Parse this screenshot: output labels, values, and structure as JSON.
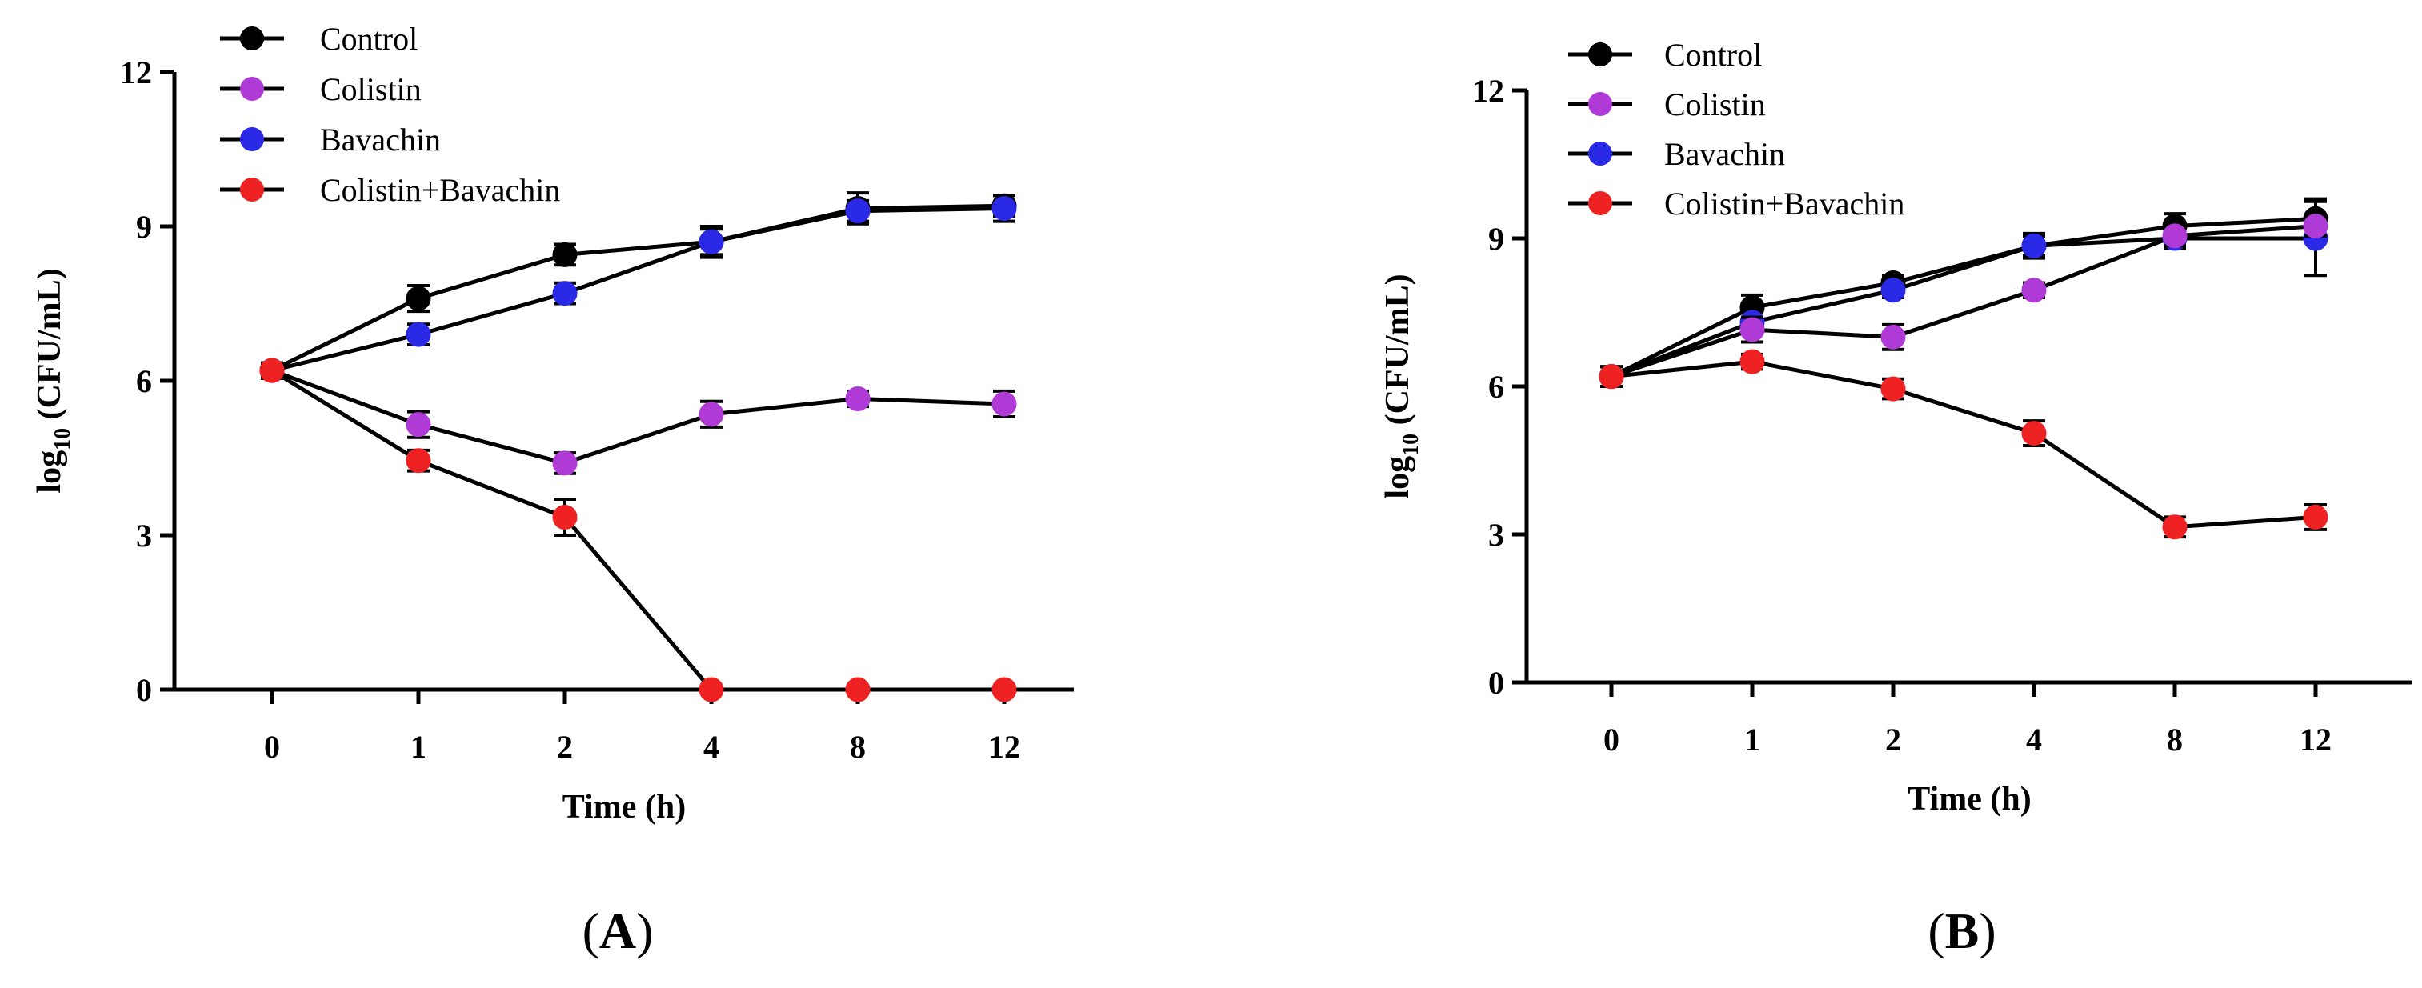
{
  "chart_data": [
    {
      "panel": "A",
      "type": "line",
      "xlabel": "Time (h)",
      "ylabel_main": "log",
      "ylabel_sub": "10",
      "ylabel_rest": " (CFU/mL)",
      "categories": [
        "0",
        "1",
        "2",
        "4",
        "8",
        "12"
      ],
      "ylim": [
        0,
        12
      ],
      "yticks": [
        "0",
        "3",
        "6",
        "9",
        "12"
      ],
      "legend_position": "top-left",
      "series": [
        {
          "name": "Control",
          "color": "#000000",
          "values": [
            6.2,
            7.6,
            8.45,
            8.7,
            9.35,
            9.4
          ],
          "errors": [
            0.15,
            0.25,
            0.2,
            0.3,
            0.3,
            0.2
          ]
        },
        {
          "name": "Colistin",
          "color": "#b03ad6",
          "values": [
            6.2,
            5.15,
            4.4,
            5.35,
            5.65,
            5.55
          ],
          "errors": [
            0.15,
            0.25,
            0.2,
            0.25,
            0.15,
            0.25
          ]
        },
        {
          "name": "Bavachin",
          "color": "#2a2ae6",
          "values": [
            6.2,
            6.9,
            7.7,
            8.7,
            9.3,
            9.35
          ],
          "errors": [
            0.15,
            0.2,
            0.2,
            0.25,
            0.2,
            0.25
          ]
        },
        {
          "name": "Colistin+Bavachin",
          "color": "#ee2222",
          "values": [
            6.2,
            4.45,
            3.35,
            0,
            0,
            0
          ],
          "errors": [
            0.15,
            0.2,
            0.35,
            0,
            0,
            0
          ]
        }
      ]
    },
    {
      "panel": "B",
      "type": "line",
      "xlabel": "Time (h)",
      "ylabel_main": "log",
      "ylabel_sub": "10",
      "ylabel_rest": " (CFU/mL)",
      "categories": [
        "0",
        "1",
        "2",
        "4",
        "8",
        "12"
      ],
      "ylim": [
        0,
        12
      ],
      "yticks": [
        "0",
        "3",
        "6",
        "9",
        "12"
      ],
      "legend_position": "top-left",
      "series": [
        {
          "name": "Control",
          "color": "#000000",
          "values": [
            6.2,
            7.6,
            8.1,
            8.85,
            9.25,
            9.4
          ],
          "errors": [
            0.2,
            0.25,
            0.15,
            0.25,
            0.25,
            0.4
          ]
        },
        {
          "name": "Colistin",
          "color": "#b03ad6",
          "values": [
            6.2,
            7.15,
            7.0,
            7.95,
            9.05,
            9.25
          ],
          "errors": [
            0.2,
            0.25,
            0.25,
            0.15,
            0.2,
            0.2
          ]
        },
        {
          "name": "Bavachin",
          "color": "#2a2ae6",
          "values": [
            6.2,
            7.3,
            7.95,
            8.85,
            9.0,
            9.0
          ],
          "errors": [
            0.2,
            0.2,
            0.15,
            0.2,
            0.2,
            0.75
          ]
        },
        {
          "name": "Colistin+Bavachin",
          "color": "#ee2222",
          "values": [
            6.2,
            6.5,
            5.95,
            5.05,
            3.15,
            3.35
          ],
          "errors": [
            0.2,
            0.15,
            0.2,
            0.25,
            0.2,
            0.25
          ]
        }
      ]
    }
  ],
  "panel_labels": {
    "a_open": "(",
    "a_letter": "A",
    "a_close": ")",
    "b_open": "(",
    "b_letter": "B",
    "b_close": ")"
  }
}
